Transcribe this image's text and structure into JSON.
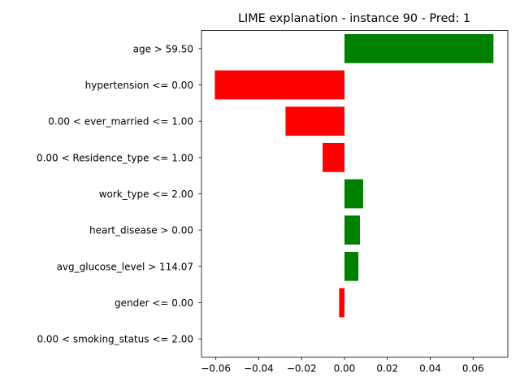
{
  "chart_data": {
    "type": "bar",
    "orientation": "horizontal",
    "title": "LIME explanation - instance 90 - Pred: 1",
    "xlabel": "",
    "ylabel": "",
    "categories": [
      "age > 59.50",
      "hypertension <= 0.00",
      "0.00 < ever_married <= 1.00",
      "0.00 < Residence_type <= 1.00",
      "work_type <= 2.00",
      "heart_disease > 0.00",
      "avg_glucose_level > 114.07",
      "gender <= 0.00",
      "0.00 < smoking_status <= 2.00"
    ],
    "values": [
      0.0695,
      -0.0605,
      -0.0275,
      -0.0102,
      0.0087,
      0.0072,
      0.0065,
      -0.0025,
      0.0
    ],
    "xlim": [
      -0.0667,
      0.0762
    ],
    "xticks": [
      -0.06,
      -0.04,
      -0.02,
      0.0,
      0.02,
      0.04,
      0.06
    ],
    "xtick_labels": [
      "−0.06",
      "−0.04",
      "−0.02",
      "0.00",
      "0.02",
      "0.04",
      "0.06"
    ],
    "grid": false,
    "colors": {
      "positive": "#008000",
      "negative": "#ff0000"
    }
  }
}
